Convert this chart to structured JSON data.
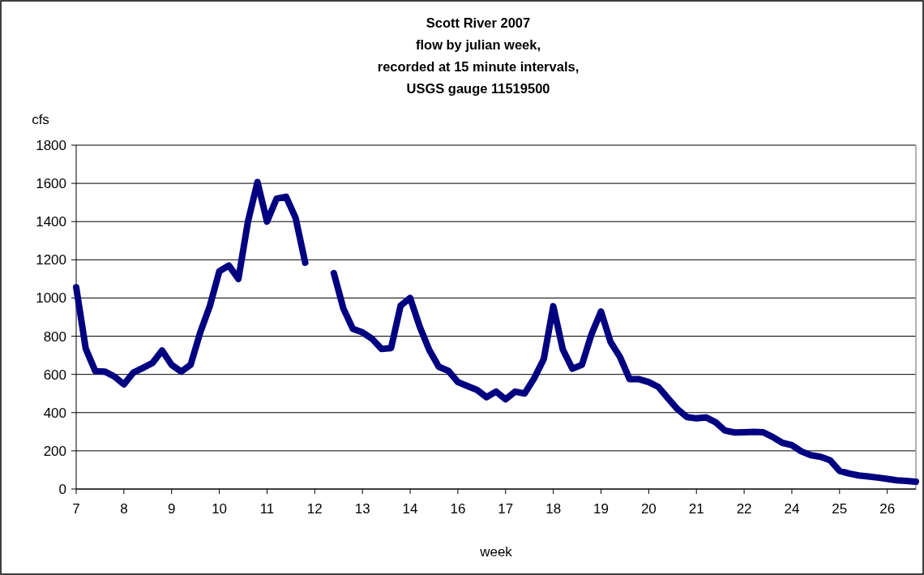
{
  "chart_data": {
    "type": "line",
    "title": "Scott River 2007\nflow by julian week,\nrecorded at 15 minute intervals,\nUSGS gauge 11519500",
    "xlabel": "week",
    "ylabel": "cfs",
    "categories": [
      "7",
      null,
      null,
      null,
      null,
      "8",
      null,
      null,
      null,
      null,
      "9",
      null,
      null,
      null,
      null,
      "10",
      null,
      null,
      null,
      null,
      "11",
      null,
      null,
      null,
      null,
      "12",
      null,
      null,
      null,
      null,
      "13",
      null,
      null,
      null,
      null,
      "14",
      null,
      null,
      null,
      null,
      "16",
      null,
      null,
      null,
      null,
      "17",
      null,
      null,
      null,
      null,
      "18",
      null,
      null,
      null,
      null,
      "19",
      null,
      null,
      null,
      null,
      "20",
      null,
      null,
      null,
      null,
      "21",
      null,
      null,
      null,
      null,
      "22",
      null,
      null,
      null,
      null,
      "24",
      null,
      null,
      null,
      null,
      "25",
      null,
      null,
      null,
      null,
      "26",
      null,
      null,
      null
    ],
    "series": [
      {
        "color": "#000080",
        "values": [
          1056,
          735,
          617,
          615,
          589,
          548,
          610,
          634,
          660,
          725,
          650,
          615,
          651,
          820,
          957,
          1140,
          1170,
          1100,
          1400,
          1607,
          1400,
          1520,
          1530,
          1418,
          1185,
          null,
          null,
          1130,
          945,
          838,
          820,
          787,
          733,
          738,
          960,
          1000,
          850,
          728,
          640,
          619,
          560,
          539,
          519,
          481,
          510,
          470,
          510,
          500,
          580,
          680,
          957,
          730,
          630,
          650,
          810,
          929,
          770,
          690,
          575,
          575,
          560,
          535,
          476,
          419,
          377,
          370,
          375,
          350,
          306,
          296,
          297,
          299,
          297,
          272,
          242,
          230,
          197,
          177,
          169,
          151,
          95,
          81,
          71,
          66,
          60,
          53,
          46,
          42,
          38
        ]
      }
    ],
    "ylim": [
      0,
      1800
    ],
    "yticks": [
      0,
      200,
      400,
      600,
      800,
      1000,
      1200,
      1400,
      1600,
      1800
    ],
    "grid": "y"
  }
}
